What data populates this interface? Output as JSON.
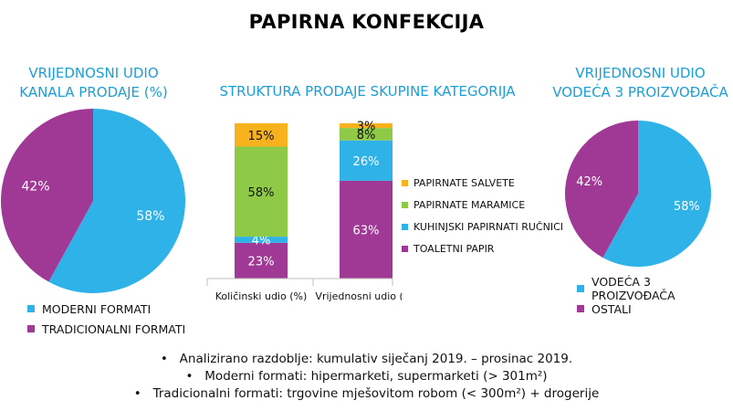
{
  "title": "PAPIRNA KONFEKCIJA",
  "colors": {
    "blue": "#2fb2e8",
    "purple": "#a03896",
    "green": "#8fca47",
    "orange": "#f7b21e",
    "title_blue": "#1a9fd6"
  },
  "chart_data": [
    {
      "type": "pie",
      "title": "VRIJEDNOSNI UDIO KANALA PRODAJE (%)",
      "categories": [
        "MODERNI FORMATI",
        "TRADICIONALNI FORMATI"
      ],
      "values": [
        58,
        42
      ],
      "labels": [
        "58%",
        "42%"
      ],
      "legend": "bottom"
    },
    {
      "type": "bar",
      "stacked": true,
      "title": "STRUKTURA PRODAJE SKUPINE KATEGORIJA",
      "categories": [
        "Količinski udio (%)",
        "Vrijednosni udio (%)"
      ],
      "series": [
        {
          "name": "TOALETNI PAPIR",
          "values": [
            23,
            63
          ],
          "labels": [
            "23%",
            "63%"
          ]
        },
        {
          "name": "KUHINJSKI PAPIRNATI RUČNICI",
          "values": [
            4,
            26
          ],
          "labels": [
            "4%",
            "26%"
          ]
        },
        {
          "name": "PAPIRNATE MARAMICE",
          "values": [
            58,
            8
          ],
          "labels": [
            "58%",
            "8%"
          ]
        },
        {
          "name": "PAPIRNATE SALVETE",
          "values": [
            15,
            3
          ],
          "labels": [
            "15%",
            "3%"
          ]
        }
      ],
      "legend_order": [
        "PAPIRNATE SALVETE",
        "PAPIRNATE MARAMICE",
        "KUHINJSKI PAPIRNATI RUČNICI",
        "TOALETNI PAPIR"
      ],
      "legend": "right",
      "ylim": [
        0,
        100
      ]
    },
    {
      "type": "pie",
      "title": "VRIJEDNOSNI UDIO VODEĆA 3 PROIZVOĐAČA",
      "categories": [
        "VODEĆA 3 PROIZVOĐAČA",
        "OSTALI"
      ],
      "values": [
        58,
        42
      ],
      "labels": [
        "58%",
        "42%"
      ],
      "legend": "bottom"
    }
  ],
  "left": {
    "title_line1": "VRIJEDNOSNI UDIO",
    "title_line2": "KANALA PRODAJE (%)",
    "legend": [
      "MODERNI FORMATI",
      "TRADICIONALNI FORMATI"
    ]
  },
  "middle": {
    "title": "STRUKTURA PRODAJE SKUPINE KATEGORIJA",
    "legend": [
      "PAPIRNATE SALVETE",
      "PAPIRNATE MARAMICE",
      "KUHINJSKI PAPIRNATI RUČNICI",
      "TOALETNI PAPIR"
    ]
  },
  "right": {
    "title_line1": "VRIJEDNOSNI UDIO",
    "title_line2": "VODEĆA 3 PROIZVOĐAČA",
    "legend": [
      "VODEĆA 3 PROIZVOĐAČA",
      "OSTALI"
    ]
  },
  "notes": [
    "Analizirano razdoblje: kumulativ siječanj 2019. – prosinac 2019.",
    "Moderni formati: hipermarketi, supermarketi (> 301m²)",
    "Tradicionalni formati: trgovine mješovitom robom (< 300m²) + drogerije"
  ]
}
